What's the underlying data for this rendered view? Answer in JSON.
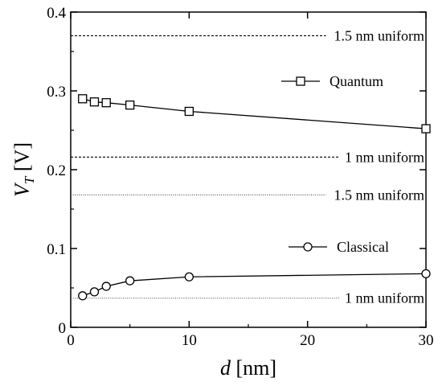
{
  "chart_data": {
    "type": "line",
    "ylabel_var": "V",
    "ylabel_sub": "T",
    "ylabel_unit": " [V]",
    "xlabel_var": "d",
    "xlabel_unit": " [nm]",
    "xlim": [
      0,
      30
    ],
    "ylim": [
      0,
      0.4
    ],
    "x_ticks": [
      0,
      10,
      20,
      30
    ],
    "x_tick_labels": [
      "0",
      "10",
      "20",
      "30"
    ],
    "y_ticks": [
      0,
      0.1,
      0.2,
      0.3,
      0.4
    ],
    "y_tick_labels": [
      "0",
      "0.1",
      "0.2",
      "0.3",
      "0.4"
    ],
    "grid": false,
    "legend": "inline labels next to each series",
    "series": [
      {
        "name": "Quantum",
        "marker": "square",
        "x": [
          1,
          2,
          3,
          5,
          10,
          30
        ],
        "y": [
          0.29,
          0.286,
          0.285,
          0.282,
          0.274,
          0.252
        ]
      },
      {
        "name": "Classical",
        "marker": "circle",
        "x": [
          1,
          2,
          3,
          5,
          10,
          30
        ],
        "y": [
          0.04,
          0.045,
          0.052,
          0.059,
          0.064,
          0.068
        ]
      }
    ],
    "reference_lines": [
      {
        "label": "1.5 nm uniform",
        "y": 0.37,
        "style": "dashed",
        "color": "#000000"
      },
      {
        "label": "1 nm uniform",
        "y": 0.216,
        "style": "dashed",
        "color": "#000000"
      },
      {
        "label": "1.5 nm uniform",
        "y": 0.168,
        "style": "dotted",
        "color": "#444444"
      },
      {
        "label": "1 nm uniform",
        "y": 0.037,
        "style": "dotted",
        "color": "#444444"
      }
    ]
  }
}
